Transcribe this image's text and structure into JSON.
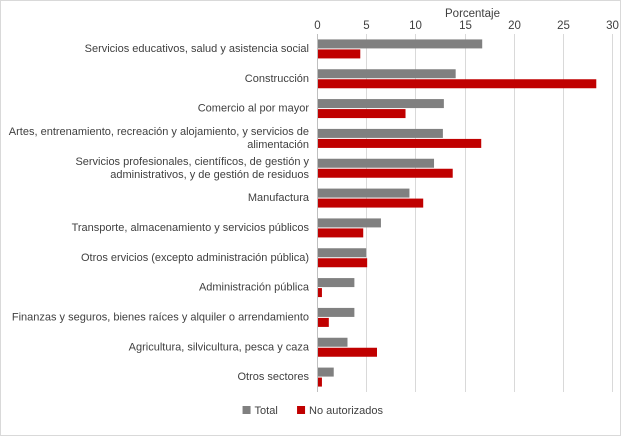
{
  "chart_data": {
    "type": "bar",
    "orientation": "horizontal",
    "title": "",
    "xlabel": "Porcentaje",
    "ylabel": "",
    "xlim": [
      0,
      30
    ],
    "xticks": [
      0,
      5,
      10,
      15,
      20,
      25,
      30
    ],
    "x_axis_position": "top",
    "grid": true,
    "legend_position": "bottom",
    "categories": [
      [
        "Servicios educativos, salud y asistencia social"
      ],
      [
        "Construcción"
      ],
      [
        "Comercio al por mayor"
      ],
      [
        "Artes, entrenamiento, recreación y alojamiento, y servicios de",
        "alimentación"
      ],
      [
        "Servicios profesionales, científicos, de gestión y",
        "administrativos, y de gestión de residuos"
      ],
      [
        "Manufactura"
      ],
      [
        "Transporte, almacenamiento y servicios públicos"
      ],
      [
        "Otros ervicios (excepto administración pública)"
      ],
      [
        "Administración pública"
      ],
      [
        "Finanzas y seguros, bienes raíces y alquiler o arrendamiento"
      ],
      [
        "Agricultura, silvicultura, pesca y caza"
      ],
      [
        "Otros sectores"
      ]
    ],
    "series": [
      {
        "name": "Total",
        "color": "#808080",
        "values": [
          16.7,
          14.0,
          12.8,
          12.7,
          11.8,
          9.3,
          6.4,
          4.9,
          3.7,
          3.7,
          3.0,
          1.6
        ]
      },
      {
        "name": "No autorizados",
        "color": "#c00000",
        "values": [
          4.3,
          28.3,
          8.9,
          16.6,
          13.7,
          10.7,
          4.6,
          5.0,
          0.4,
          1.1,
          6.0,
          0.4
        ]
      }
    ]
  }
}
